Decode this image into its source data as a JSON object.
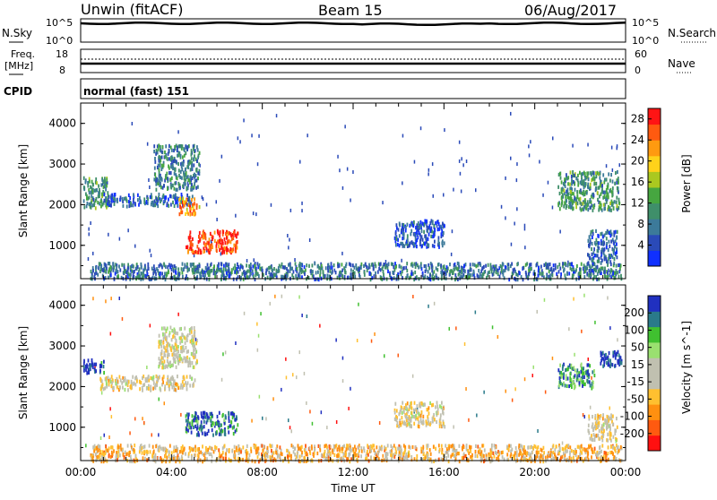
{
  "header": {
    "station": "Unwin (fitACF)",
    "beam": "Beam 15",
    "date": "06/Aug/2017"
  },
  "top_panels": {
    "nsky_label": "N.Sky",
    "nsky_ticks": [
      "10^5",
      "10^0"
    ],
    "nsearch_label": "N.Search",
    "freq_label": "Freq.",
    "freq_unit": "[MHz]",
    "freq_ticks": [
      "18",
      "8"
    ],
    "nave_label": "Nave",
    "nave_ticks": [
      "60",
      "0"
    ],
    "cpid_label": "CPID",
    "cpid_value": "normal (fast) 151"
  },
  "chart_data": [
    {
      "type": "heatmap",
      "name": "power",
      "ylabel": "Slant Range [km]",
      "xlabel": "Time UT",
      "xlim": [
        0,
        24
      ],
      "ylim": [
        180,
        4500
      ],
      "x_ticks": [
        "00:00",
        "04:00",
        "08:00",
        "12:00",
        "16:00",
        "20:00",
        "00:00"
      ],
      "y_ticks": [
        1000,
        2000,
        3000,
        4000
      ],
      "colorbar": {
        "label": "Power [dB]",
        "ticks": [
          28,
          24,
          20,
          16,
          12,
          8,
          4
        ],
        "range": [
          0,
          30
        ],
        "colors": [
          "#1030ff",
          "#2a4ab8",
          "#3c7a9a",
          "#3f8f6a",
          "#46a640",
          "#aac820",
          "#ffd21a",
          "#ff9a10",
          "#ff5a10",
          "#ff1414"
        ]
      },
      "echo_regions": [
        {
          "t0": 0.1,
          "t1": 1.2,
          "r0": 1950,
          "r1": 2700,
          "level": 0.35
        },
        {
          "t0": 1.0,
          "t1": 5.0,
          "r0": 2000,
          "r1": 2300,
          "level": 0.2
        },
        {
          "t0": 3.2,
          "t1": 5.2,
          "r0": 2400,
          "r1": 3500,
          "level": 0.3
        },
        {
          "t0": 4.3,
          "t1": 5.2,
          "r0": 1800,
          "r1": 2200,
          "level": 0.75
        },
        {
          "t0": 4.6,
          "t1": 6.9,
          "r0": 850,
          "r1": 1400,
          "level": 0.9
        },
        {
          "t0": 5.0,
          "t1": 7.0,
          "r0": 380,
          "r1": 460,
          "level": 0.3
        },
        {
          "t0": 13.8,
          "t1": 16.0,
          "r0": 1000,
          "r1": 1650,
          "level": 0.15
        },
        {
          "t0": 0.4,
          "t1": 23.8,
          "r0": 200,
          "r1": 600,
          "level": 0.25
        },
        {
          "t0": 21.0,
          "t1": 23.7,
          "r0": 1900,
          "r1": 2850,
          "level": 0.35
        },
        {
          "t0": 22.3,
          "t1": 23.6,
          "r0": 600,
          "r1": 1400,
          "level": 0.2
        }
      ]
    },
    {
      "type": "heatmap",
      "name": "velocity",
      "ylabel": "Slant Range [km]",
      "xlabel": "Time UT",
      "xlim": [
        0,
        24
      ],
      "ylim": [
        180,
        4500
      ],
      "x_ticks": [
        "00:00",
        "04:00",
        "08:00",
        "12:00",
        "16:00",
        "20:00",
        "00:00"
      ],
      "y_ticks": [
        1000,
        2000,
        3000,
        4000
      ],
      "colorbar": {
        "label": "Velocity [m s^-1]",
        "ticks": [
          200,
          100,
          50,
          15,
          -15,
          -50,
          -100,
          -200
        ],
        "range": [
          -250,
          250
        ],
        "colors": [
          "#ff1010",
          "#ff5a10",
          "#ff9010",
          "#ffc030",
          "#c0c0b0",
          "#c0c0b0",
          "#9ae070",
          "#40c030",
          "#2a7a8a",
          "#2030c0"
        ]
      },
      "echo_regions": [
        {
          "t0": 0.1,
          "t1": 1.0,
          "r0": 2350,
          "r1": 2700,
          "level": 0.95
        },
        {
          "t0": 0.8,
          "t1": 5.0,
          "r0": 1950,
          "r1": 2300,
          "level": 0.45
        },
        {
          "t0": 3.4,
          "t1": 5.1,
          "r0": 2500,
          "r1": 3500,
          "level": 0.5
        },
        {
          "t0": 4.6,
          "t1": 6.9,
          "r0": 850,
          "r1": 1400,
          "level": 0.85
        },
        {
          "t0": 13.8,
          "t1": 16.0,
          "r0": 1050,
          "r1": 1650,
          "level": 0.45
        },
        {
          "t0": 0.4,
          "t1": 23.8,
          "r0": 200,
          "r1": 600,
          "level": 0.35
        },
        {
          "t0": 21.0,
          "t1": 22.6,
          "r0": 2000,
          "r1": 2600,
          "level": 0.8
        },
        {
          "t0": 22.8,
          "t1": 23.8,
          "r0": 2500,
          "r1": 2900,
          "level": 0.98
        },
        {
          "t0": 22.3,
          "t1": 23.6,
          "r0": 700,
          "r1": 1350,
          "level": 0.45
        }
      ]
    }
  ]
}
